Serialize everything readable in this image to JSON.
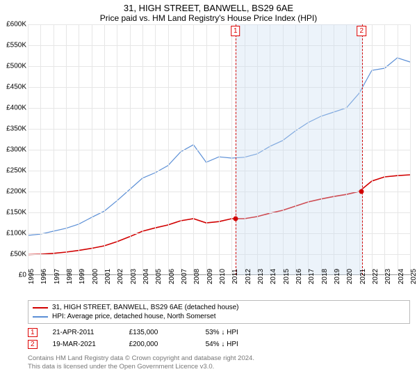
{
  "title": "31, HIGH STREET, BANWELL, BS29 6AE",
  "subtitle": "Price paid vs. HM Land Registry's House Price Index (HPI)",
  "chart": {
    "type": "line",
    "background_color": "#ffffff",
    "grid_color": "#e6e6e6",
    "axis_color": "#999999",
    "label_fontsize": 10,
    "ylim": [
      0,
      600000
    ],
    "ytick_step": 50000,
    "y_prefix": "£",
    "y_suffix": "K",
    "xlim": [
      1995,
      2025
    ],
    "xtick_step": 1,
    "band": {
      "start": 2011.3,
      "end": 2021.2,
      "fill": "rgba(200,220,240,0.35)",
      "border": "#d00000"
    },
    "markers": [
      {
        "n": "1",
        "x": 2011.3,
        "y": 135000,
        "color": "#d10000"
      },
      {
        "n": "2",
        "x": 2021.2,
        "y": 200000,
        "color": "#d10000"
      }
    ],
    "series": [
      {
        "name": "property",
        "label": "31, HIGH STREET, BANWELL, BS29 6AE (detached house)",
        "color": "#d10000",
        "width": 1.6,
        "data": [
          [
            1995,
            49000
          ],
          [
            1996,
            50000
          ],
          [
            1997,
            52000
          ],
          [
            1998,
            55000
          ],
          [
            1999,
            59000
          ],
          [
            2000,
            64000
          ],
          [
            2001,
            70000
          ],
          [
            2002,
            80000
          ],
          [
            2003,
            92000
          ],
          [
            2004,
            105000
          ],
          [
            2005,
            113000
          ],
          [
            2006,
            120000
          ],
          [
            2007,
            130000
          ],
          [
            2008,
            135000
          ],
          [
            2009,
            125000
          ],
          [
            2010,
            128000
          ],
          [
            2011,
            135000
          ],
          [
            2012,
            135000
          ],
          [
            2013,
            140000
          ],
          [
            2014,
            148000
          ],
          [
            2015,
            155000
          ],
          [
            2016,
            165000
          ],
          [
            2017,
            175000
          ],
          [
            2018,
            182000
          ],
          [
            2019,
            188000
          ],
          [
            2020,
            193000
          ],
          [
            2021,
            200000
          ],
          [
            2022,
            225000
          ],
          [
            2023,
            235000
          ],
          [
            2024,
            238000
          ],
          [
            2025,
            240000
          ]
        ]
      },
      {
        "name": "hpi",
        "label": "HPI: Average price, detached house, North Somerset",
        "color": "#5b8fd6",
        "width": 1.2,
        "data": [
          [
            1995,
            95000
          ],
          [
            1996,
            98000
          ],
          [
            1997,
            105000
          ],
          [
            1998,
            112000
          ],
          [
            1999,
            122000
          ],
          [
            2000,
            138000
          ],
          [
            2001,
            153000
          ],
          [
            2002,
            178000
          ],
          [
            2003,
            205000
          ],
          [
            2004,
            232000
          ],
          [
            2005,
            245000
          ],
          [
            2006,
            262000
          ],
          [
            2007,
            295000
          ],
          [
            2008,
            312000
          ],
          [
            2009,
            270000
          ],
          [
            2010,
            283000
          ],
          [
            2011,
            280000
          ],
          [
            2012,
            282000
          ],
          [
            2013,
            290000
          ],
          [
            2014,
            308000
          ],
          [
            2015,
            322000
          ],
          [
            2016,
            345000
          ],
          [
            2017,
            365000
          ],
          [
            2018,
            380000
          ],
          [
            2019,
            390000
          ],
          [
            2020,
            400000
          ],
          [
            2021,
            435000
          ],
          [
            2022,
            490000
          ],
          [
            2023,
            495000
          ],
          [
            2024,
            520000
          ],
          [
            2025,
            510000
          ]
        ]
      }
    ]
  },
  "legend": {
    "items": [
      {
        "color": "#d10000",
        "label": "31, HIGH STREET, BANWELL, BS29 6AE (detached house)"
      },
      {
        "color": "#5b8fd6",
        "label": "HPI: Average price, detached house, North Somerset"
      }
    ]
  },
  "marker_table": {
    "rows": [
      {
        "n": "1",
        "date": "21-APR-2011",
        "price": "£135,000",
        "pct": "53% ↓ HPI"
      },
      {
        "n": "2",
        "date": "19-MAR-2021",
        "price": "£200,000",
        "pct": "54% ↓ HPI"
      }
    ]
  },
  "attribution": {
    "line1": "Contains HM Land Registry data © Crown copyright and database right 2024.",
    "line2": "This data is licensed under the Open Government Licence v3.0."
  }
}
